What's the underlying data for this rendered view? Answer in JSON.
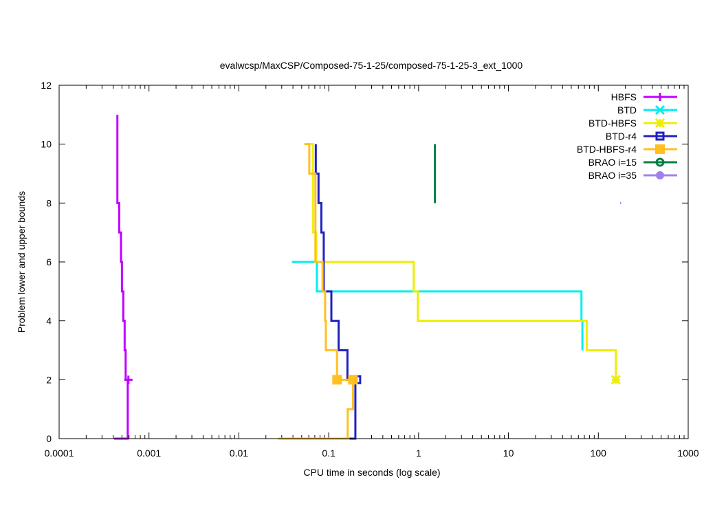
{
  "chart_data": {
    "type": "line",
    "title": "evalwcsp/MaxCSP/Composed-75-1-25/composed-75-1-25-3_ext_1000",
    "xlabel": "CPU time in seconds (log scale)",
    "ylabel": "Problem lower and upper bounds",
    "xscale": "log",
    "xlim": [
      0.0001,
      1000
    ],
    "ylim": [
      0,
      12
    ],
    "xticks": [
      0.0001,
      0.001,
      0.01,
      0.1,
      1,
      10,
      100,
      1000
    ],
    "xtick_labels": [
      "0.0001",
      "0.001",
      "0.01",
      "0.1",
      "1",
      "10",
      "100",
      "1000"
    ],
    "yticks": [
      0,
      2,
      4,
      6,
      8,
      10,
      12
    ],
    "ytick_labels": [
      "0",
      "2",
      "4",
      "6",
      "8",
      "10",
      "12"
    ],
    "grid": false,
    "legend_position": "top-right",
    "series": [
      {
        "name": "HBFS",
        "color": "#c000ff",
        "marker": "plus",
        "points": [
          [
            0.000445,
            11
          ],
          [
            0.000445,
            8
          ],
          [
            0.000466,
            8
          ],
          [
            0.000466,
            7
          ],
          [
            0.000488,
            7
          ],
          [
            0.000488,
            6
          ],
          [
            0.0005,
            6
          ],
          [
            0.0005,
            5
          ],
          [
            0.000518,
            5
          ],
          [
            0.000518,
            4
          ],
          [
            0.000536,
            4
          ],
          [
            0.000536,
            3
          ],
          [
            0.00055,
            3
          ],
          [
            0.00055,
            2
          ],
          [
            0.00058,
            2
          ],
          [
            0.00058,
            0
          ],
          [
            0.00041,
            0
          ]
        ],
        "markers": [
          [
            0.00059,
            2
          ]
        ]
      },
      {
        "name": "BTD",
        "color": "#00eeee",
        "marker": "cross",
        "points": [
          [
            0.0389,
            6
          ],
          [
            0.0738,
            6
          ],
          [
            0.0738,
            5
          ],
          [
            64.9,
            5
          ],
          [
            64.9,
            4
          ],
          [
            66.5,
            4
          ],
          [
            66.5,
            3
          ]
        ],
        "extra": [
          [
            0.0082,
            0
          ],
          [
            0.0083,
            0
          ]
        ],
        "markers": []
      },
      {
        "name": "BTD-HBFS",
        "color": "#eeee00",
        "marker": "star",
        "points": [
          [
            0.0608,
            10
          ],
          [
            0.0668,
            10
          ],
          [
            0.0668,
            7
          ],
          [
            0.0727,
            7
          ],
          [
            0.0727,
            6
          ],
          [
            0.883,
            6
          ],
          [
            0.883,
            5
          ],
          [
            0.98,
            5
          ],
          [
            0.98,
            4
          ],
          [
            74.3,
            4
          ],
          [
            74.3,
            3
          ],
          [
            156.7,
            3
          ],
          [
            156.7,
            2
          ]
        ],
        "markers": [
          [
            156.7,
            2
          ]
        ]
      },
      {
        "name": "BTD-r4",
        "color": "#2020c0",
        "marker": "box",
        "points": [
          [
            0.0718,
            10
          ],
          [
            0.0718,
            9
          ],
          [
            0.077,
            9
          ],
          [
            0.077,
            8
          ],
          [
            0.0828,
            8
          ],
          [
            0.0828,
            7
          ],
          [
            0.088,
            7
          ],
          [
            0.088,
            5
          ],
          [
            0.107,
            5
          ],
          [
            0.107,
            4
          ],
          [
            0.1288,
            4
          ],
          [
            0.1288,
            3
          ],
          [
            0.1615,
            3
          ],
          [
            0.1615,
            2
          ],
          [
            0.198,
            2
          ],
          [
            0.198,
            0
          ],
          [
            0.17,
            0
          ]
        ],
        "markers": [
          [
            0.205,
            2
          ]
        ]
      },
      {
        "name": "BTD-HBFS-r4",
        "color": "#ffc020",
        "marker": "filled-box",
        "points": [
          [
            0.0535,
            10
          ],
          [
            0.0608,
            10
          ],
          [
            0.0608,
            9
          ],
          [
            0.0711,
            9
          ],
          [
            0.0711,
            6
          ],
          [
            0.0854,
            6
          ],
          [
            0.0854,
            5
          ],
          [
            0.0911,
            5
          ],
          [
            0.0911,
            4
          ],
          [
            0.0929,
            4
          ],
          [
            0.0929,
            3
          ],
          [
            0.1237,
            3
          ],
          [
            0.1237,
            2
          ],
          [
            0.1865,
            2
          ],
          [
            0.1865,
            1
          ],
          [
            0.1625,
            1
          ],
          [
            0.1625,
            0
          ],
          [
            0.0275,
            0
          ]
        ],
        "markers": [
          [
            0.124,
            2
          ],
          [
            0.186,
            2
          ]
        ]
      },
      {
        "name": "BRAO i=15",
        "color": "#008040",
        "marker": "circle",
        "points": [
          [
            1.52,
            8
          ],
          [
            1.52,
            10
          ]
        ],
        "markers": []
      },
      {
        "name": "BRAO i=35",
        "color": "#a080f0",
        "marker": "filled-circle",
        "points": [
          [
            175,
            8
          ],
          [
            179,
            8
          ]
        ],
        "markers": []
      }
    ]
  }
}
